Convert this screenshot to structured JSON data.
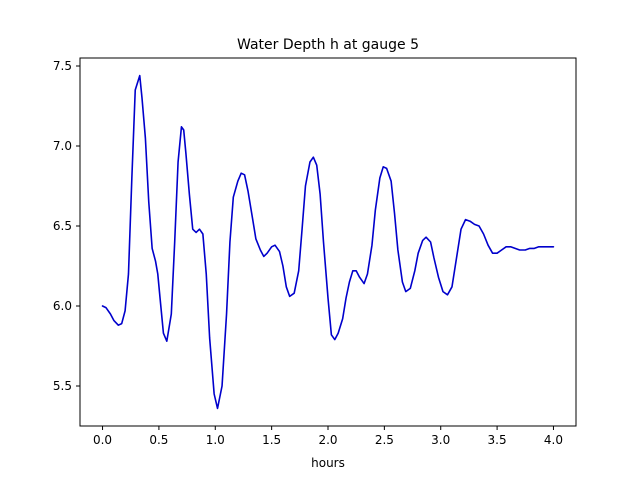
{
  "chart_data": {
    "type": "line",
    "title": "Water Depth h at gauge 5",
    "xlabel": "hours",
    "ylabel": "",
    "xlim": [
      -0.2,
      4.2
    ],
    "ylim": [
      5.25,
      7.55
    ],
    "xticks": [
      {
        "value": 0.0,
        "label": "0.0"
      },
      {
        "value": 0.5,
        "label": "0.5"
      },
      {
        "value": 1.0,
        "label": "1.0"
      },
      {
        "value": 1.5,
        "label": "1.5"
      },
      {
        "value": 2.0,
        "label": "2.0"
      },
      {
        "value": 2.5,
        "label": "2.5"
      },
      {
        "value": 3.0,
        "label": "3.0"
      },
      {
        "value": 3.5,
        "label": "3.5"
      },
      {
        "value": 4.0,
        "label": "4.0"
      }
    ],
    "yticks": [
      {
        "value": 5.5,
        "label": "5.5"
      },
      {
        "value": 6.0,
        "label": "6.0"
      },
      {
        "value": 6.5,
        "label": "6.5"
      },
      {
        "value": 7.0,
        "label": "7.0"
      },
      {
        "value": 7.5,
        "label": "7.5"
      }
    ],
    "grid": false,
    "series": [
      {
        "color": "#0000cc",
        "x": [
          0.0,
          0.03,
          0.07,
          0.1,
          0.14,
          0.17,
          0.2,
          0.23,
          0.26,
          0.29,
          0.33,
          0.35,
          0.38,
          0.41,
          0.44,
          0.47,
          0.49,
          0.51,
          0.54,
          0.57,
          0.61,
          0.64,
          0.67,
          0.7,
          0.72,
          0.74,
          0.77,
          0.8,
          0.83,
          0.86,
          0.89,
          0.92,
          0.95,
          0.99,
          1.02,
          1.06,
          1.1,
          1.13,
          1.16,
          1.2,
          1.23,
          1.26,
          1.29,
          1.33,
          1.36,
          1.4,
          1.43,
          1.46,
          1.5,
          1.53,
          1.57,
          1.6,
          1.63,
          1.66,
          1.7,
          1.74,
          1.77,
          1.8,
          1.84,
          1.87,
          1.9,
          1.93,
          1.96,
          2.0,
          2.03,
          2.06,
          2.09,
          2.13,
          2.16,
          2.19,
          2.22,
          2.25,
          2.28,
          2.32,
          2.35,
          2.39,
          2.42,
          2.46,
          2.49,
          2.52,
          2.56,
          2.59,
          2.62,
          2.66,
          2.69,
          2.73,
          2.77,
          2.8,
          2.84,
          2.87,
          2.91,
          2.94,
          2.98,
          3.02,
          3.06,
          3.1,
          3.14,
          3.18,
          3.22,
          3.26,
          3.3,
          3.34,
          3.38,
          3.42,
          3.46,
          3.5,
          3.54,
          3.58,
          3.62,
          3.66,
          3.7,
          3.75,
          3.79,
          3.83,
          3.87,
          3.91,
          3.95,
          4.0
        ],
        "y": [
          6.0,
          5.99,
          5.95,
          5.91,
          5.88,
          5.89,
          5.97,
          6.2,
          6.8,
          7.35,
          7.44,
          7.3,
          7.05,
          6.65,
          6.36,
          6.28,
          6.2,
          6.05,
          5.83,
          5.78,
          5.95,
          6.4,
          6.9,
          7.12,
          7.1,
          6.95,
          6.7,
          6.48,
          6.46,
          6.48,
          6.45,
          6.2,
          5.8,
          5.45,
          5.36,
          5.5,
          5.95,
          6.4,
          6.68,
          6.78,
          6.83,
          6.82,
          6.72,
          6.55,
          6.42,
          6.35,
          6.31,
          6.33,
          6.37,
          6.38,
          6.34,
          6.25,
          6.12,
          6.06,
          6.08,
          6.22,
          6.48,
          6.75,
          6.9,
          6.93,
          6.88,
          6.7,
          6.4,
          6.05,
          5.82,
          5.79,
          5.83,
          5.92,
          6.05,
          6.15,
          6.22,
          6.22,
          6.18,
          6.14,
          6.2,
          6.38,
          6.6,
          6.8,
          6.87,
          6.86,
          6.78,
          6.58,
          6.35,
          6.15,
          6.09,
          6.11,
          6.22,
          6.33,
          6.41,
          6.43,
          6.4,
          6.3,
          6.18,
          6.09,
          6.07,
          6.12,
          6.3,
          6.48,
          6.54,
          6.53,
          6.51,
          6.5,
          6.45,
          6.38,
          6.33,
          6.33,
          6.35,
          6.37,
          6.37,
          6.36,
          6.35,
          6.35,
          6.36,
          6.36,
          6.37,
          6.37,
          6.37,
          6.37
        ]
      }
    ]
  }
}
